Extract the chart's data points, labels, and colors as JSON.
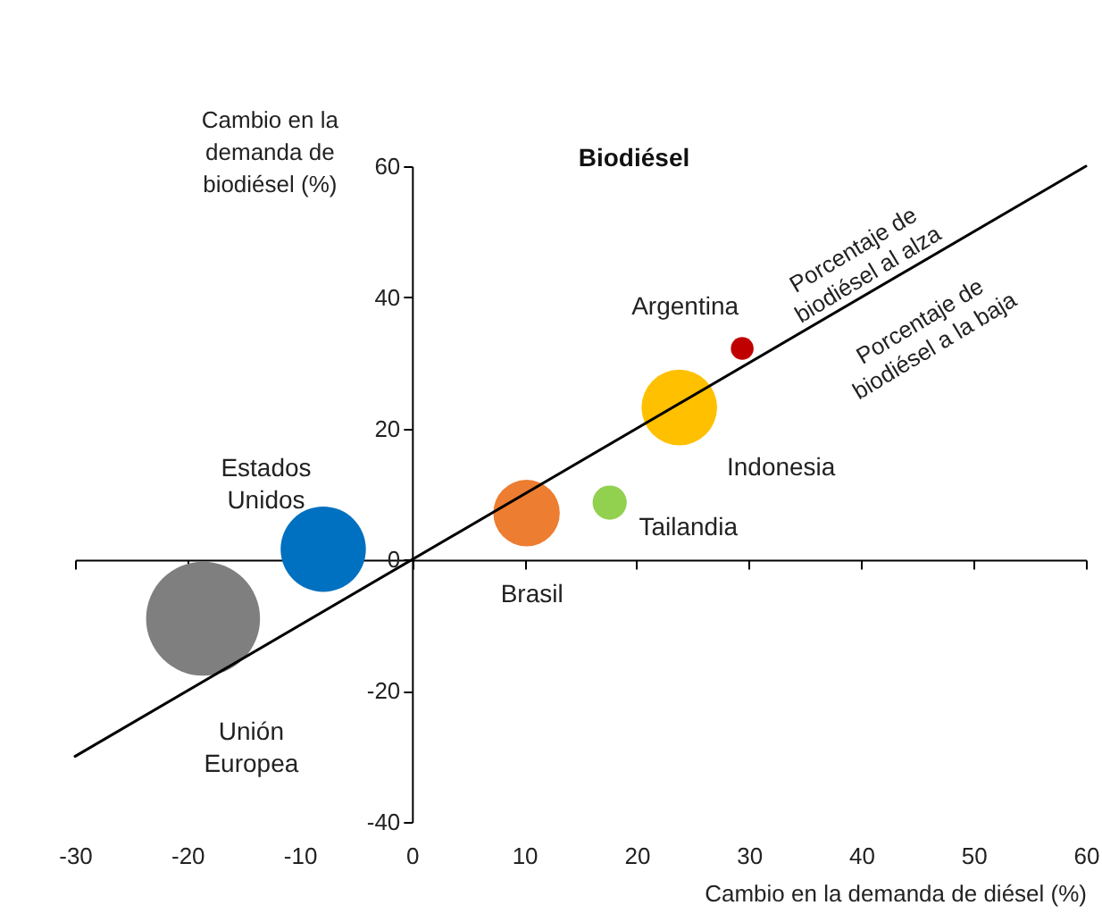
{
  "chart_data": {
    "type": "bubble",
    "title": "Biodiésel",
    "xlabel": "Cambio en la demanda de diésel (%)",
    "ylabel": "Cambio en la demanda de biodiésel (%)",
    "xlim": [
      -30,
      60
    ],
    "ylim": [
      -40,
      60
    ],
    "xticks": [
      -30,
      -20,
      -10,
      0,
      10,
      20,
      30,
      40,
      50,
      60
    ],
    "yticks": [
      -40,
      -20,
      0,
      20,
      40,
      60
    ],
    "legend": false,
    "series": [
      {
        "name": "Unión Europea",
        "color": "#7f7f7f",
        "x": [
          -18.6
        ],
        "values": [
          -9
        ],
        "sizes": [
          1
        ]
      },
      {
        "name": "Estados Unidos",
        "color": "#0070c0",
        "x": [
          -7.9
        ],
        "values": [
          1.6
        ],
        "sizes": [
          0.56
        ]
      },
      {
        "name": "Brasil",
        "color": "#ed7d31",
        "x": [
          10.2
        ],
        "values": [
          7.1
        ],
        "sizes": [
          0.34
        ]
      },
      {
        "name": "Tailandia",
        "color": "#92d050",
        "x": [
          17.6
        ],
        "values": [
          8.7
        ],
        "sizes": [
          0.09
        ]
      },
      {
        "name": "Indonesia",
        "color": "#ffc000",
        "x": [
          23.8
        ],
        "values": [
          23.2
        ],
        "sizes": [
          0.44
        ]
      },
      {
        "name": "Argentina",
        "color": "#c00000",
        "x": [
          29.4
        ],
        "values": [
          32.2
        ],
        "sizes": [
          0.04
        ]
      },
      {
        "type": "line",
        "color": "#000000",
        "marker": "none",
        "line_style": "solid",
        "x": [
          -30,
          60
        ],
        "values": [
          -30,
          60
        ]
      }
    ],
    "annotations": [
      "Porcentaje de biodiésel al alza",
      "Porcentaje de biodiésel a la baja"
    ]
  }
}
